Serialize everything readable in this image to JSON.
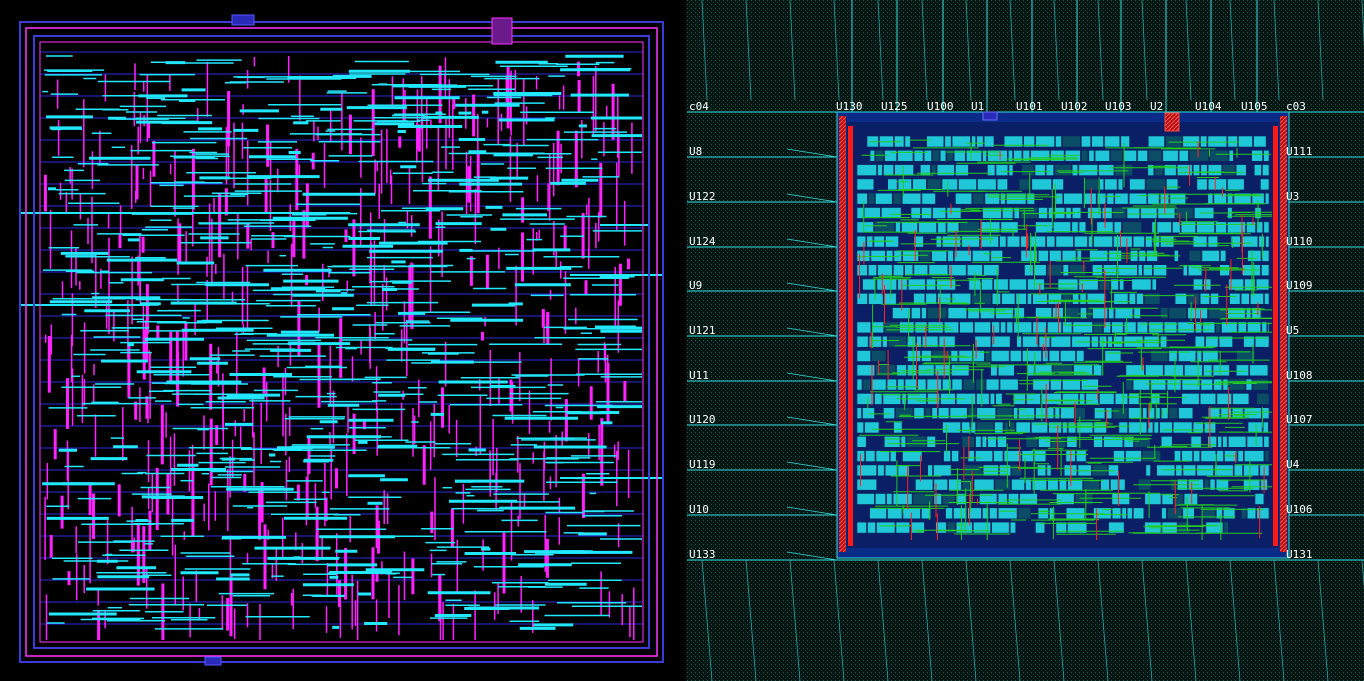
{
  "left_view": {
    "colors": {
      "background": "#000000",
      "boundary": "#3b3bd8",
      "ring": "#ff33ff",
      "rows": "#2b2bd8",
      "vertical_wires": "#ff22ff",
      "horizontal_wires": "#22e8ff"
    }
  },
  "right_view": {
    "colors": {
      "background": "#071612",
      "grid": "#0f3b34",
      "io_lines": "#33dddd",
      "core_fill": "#0b2b88",
      "cells": "#1fc7d8",
      "green_wires": "#22cc22",
      "red_wires": "#ff2222",
      "power_ring": "#ff1a1a"
    },
    "pins_top": [
      "U130",
      "U125",
      "U100",
      "U1",
      "U101",
      "U102",
      "U103",
      "U2",
      "U104",
      "U105"
    ],
    "pins_left": [
      "U8",
      "U122",
      "U124",
      "U9",
      "U121",
      "U11",
      "U120",
      "U119",
      "U10",
      "U133"
    ],
    "pins_right": [
      "U111",
      "U3",
      "U110",
      "U109",
      "U5",
      "U108",
      "U107",
      "U4",
      "U106",
      "U131"
    ],
    "corner_top_left": "c04",
    "corner_top_right": "c03"
  }
}
